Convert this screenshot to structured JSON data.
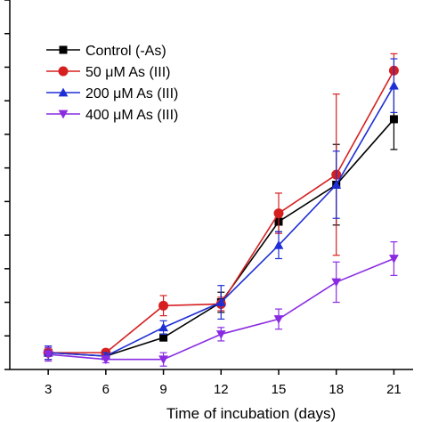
{
  "chart_data": {
    "type": "line",
    "title": "",
    "xlabel": "Time of incubation (days)",
    "ylabel": "",
    "x": [
      3,
      6,
      9,
      12,
      15,
      18,
      21
    ],
    "xlim": [
      1,
      22
    ],
    "ylim": [
      0,
      1.1
    ],
    "legend_position": "top-left",
    "series": [
      {
        "name": "Control (-As)",
        "color": "#000000",
        "marker": "square",
        "values": [
          0.05,
          0.04,
          0.095,
          0.2,
          0.44,
          0.55,
          0.745
        ],
        "errors": [
          0.02,
          0.01,
          0.01,
          0.03,
          0.03,
          0.12,
          0.09
        ]
      },
      {
        "name": "50 μM As (III)",
        "color": "#d62020",
        "marker": "circle",
        "values": [
          0.05,
          0.05,
          0.19,
          0.195,
          0.465,
          0.58,
          0.89
        ],
        "errors": [
          0.02,
          0.01,
          0.03,
          0.02,
          0.06,
          0.24,
          0.05
        ]
      },
      {
        "name": "200 μM As (III)",
        "color": "#1e2fd6",
        "marker": "triangle-up",
        "values": [
          0.05,
          0.04,
          0.125,
          0.2,
          0.37,
          0.55,
          0.845
        ],
        "errors": [
          0.02,
          0.01,
          0.02,
          0.05,
          0.04,
          0.1,
          0.08
        ]
      },
      {
        "name": "400 μM As (III)",
        "color": "#8a2be2",
        "marker": "triangle-down",
        "values": [
          0.045,
          0.03,
          0.03,
          0.105,
          0.15,
          0.26,
          0.33
        ],
        "errors": [
          0.02,
          0.01,
          0.02,
          0.02,
          0.03,
          0.06,
          0.05
        ]
      }
    ]
  }
}
